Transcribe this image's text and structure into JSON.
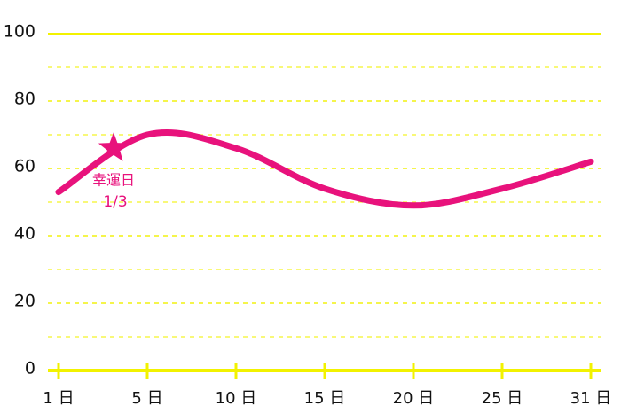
{
  "chart_data": {
    "type": "line",
    "categories": [
      "1 日",
      "5 日",
      "10 日",
      "15 日",
      "20 日",
      "25 日",
      "31 日"
    ],
    "values": [
      53,
      70,
      66,
      54,
      49,
      54,
      62
    ],
    "color": "#e8127c",
    "axis_color": "#f2f200",
    "ylim": [
      0,
      100
    ],
    "yticks": [
      0,
      20,
      40,
      60,
      80,
      100
    ],
    "minor_grid": [
      10,
      30,
      50,
      70,
      90
    ],
    "grid": true,
    "annotation": {
      "text": "幸運日",
      "date": "1/3",
      "value": 66
    }
  }
}
